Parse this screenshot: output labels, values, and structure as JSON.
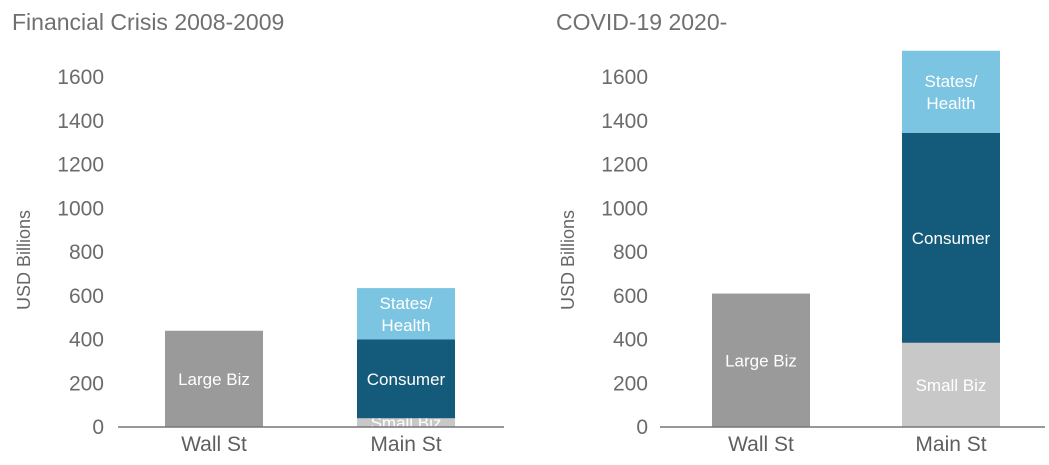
{
  "chart_data": [
    {
      "type": "bar",
      "stacked": true,
      "title": "Financial Crisis 2008-2009",
      "ylabel": "USD Billions",
      "ylim": [
        0,
        1600
      ],
      "yticks": [
        0,
        200,
        400,
        600,
        800,
        1000,
        1200,
        1400,
        1600
      ],
      "categories": [
        "Wall St",
        "Main St"
      ],
      "bars": [
        {
          "category": "Wall St",
          "segments": [
            {
              "name": "Large Biz",
              "value": 440,
              "color": "#9a9a9a"
            }
          ]
        },
        {
          "category": "Main St",
          "segments": [
            {
              "name": "Small Biz",
              "value": 40,
              "color": "#c8c8c8"
            },
            {
              "name": "Consumer",
              "value": 360,
              "color": "#145a7a"
            },
            {
              "name": "States/ Health",
              "value": 235,
              "color": "#7bc4e2"
            }
          ]
        }
      ]
    },
    {
      "type": "bar",
      "stacked": true,
      "title": "COVID-19 2020-",
      "ylabel": "USD Billions",
      "ylim": [
        0,
        1600
      ],
      "yticks": [
        0,
        200,
        400,
        600,
        800,
        1000,
        1200,
        1400,
        1600
      ],
      "categories": [
        "Wall St",
        "Main St"
      ],
      "bars": [
        {
          "category": "Wall St",
          "segments": [
            {
              "name": "Large Biz",
              "value": 610,
              "color": "#9a9a9a"
            }
          ]
        },
        {
          "category": "Main St",
          "segments": [
            {
              "name": "Small Biz",
              "value": 385,
              "color": "#c8c8c8"
            },
            {
              "name": "Consumer",
              "value": 960,
              "color": "#145a7a"
            },
            {
              "name": "States/ Health",
              "value": 375,
              "color": "#7bc4e2"
            }
          ]
        }
      ]
    }
  ]
}
